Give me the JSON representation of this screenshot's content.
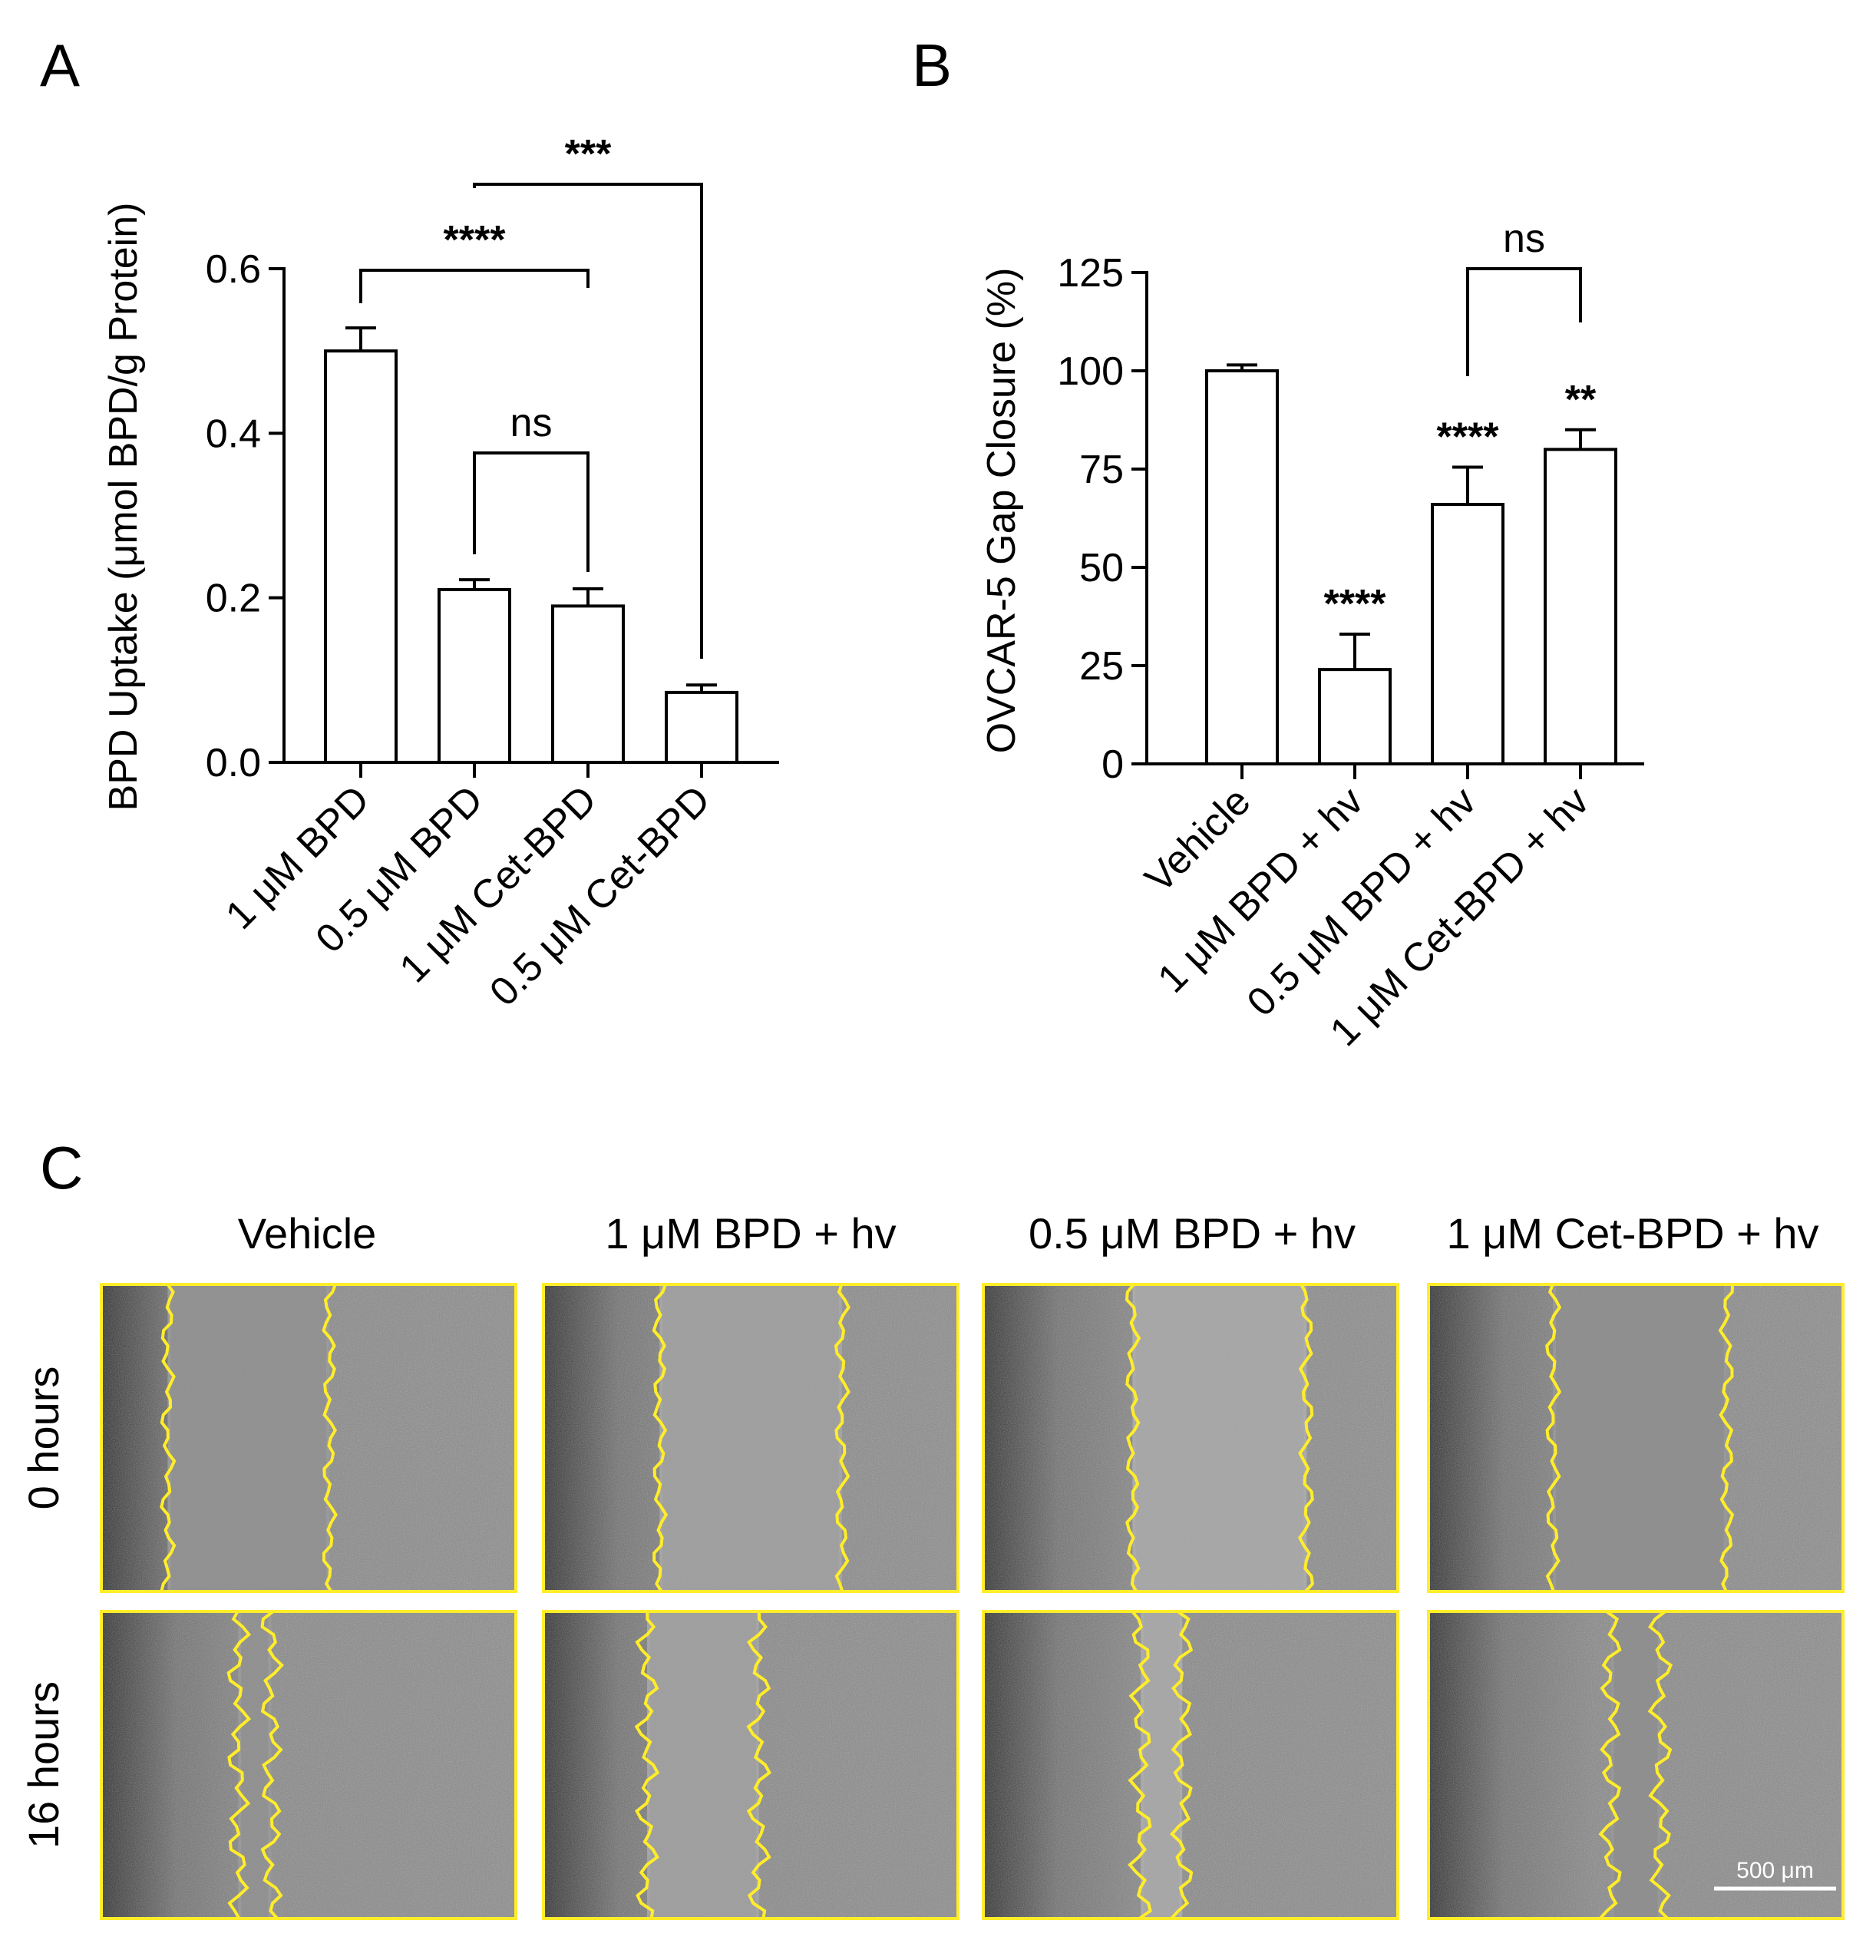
{
  "colors": {
    "bar_fill": "#ffffff",
    "bar_stroke": "#000000",
    "outline": "#ffed2a",
    "scale_bar": "#ffffff"
  },
  "chart_data": [
    {
      "panel": "A",
      "type": "bar",
      "ylabel": "BPD Uptake (μmol BPD/g Protein)",
      "categories": [
        "1 μM BPD",
        "0.5 μM BPD",
        "1 μM Cet-BPD",
        "0.5 μM Cet-BPD"
      ],
      "values": [
        0.5,
        0.21,
        0.19,
        0.085
      ],
      "errors": [
        0.028,
        0.012,
        0.021,
        0.009
      ],
      "ylim": [
        0,
        0.6
      ],
      "yticks": [
        "0.0",
        "0.2",
        "0.4",
        "0.6"
      ],
      "ytick_values": [
        0,
        0.2,
        0.4,
        0.6
      ],
      "brackets": [
        {
          "from": 1,
          "to": 3,
          "label": "***"
        },
        {
          "from": 0,
          "to": 2,
          "label": "****"
        },
        {
          "from": 1,
          "to": 2,
          "label": "ns"
        }
      ]
    },
    {
      "panel": "B",
      "type": "bar",
      "ylabel": "OVCAR-5 Gap Closure (%)",
      "categories": [
        "Vehicle",
        "1 μM BPD + hv",
        "0.5 μM BPD + hv",
        "1 μM Cet-BPD + hv"
      ],
      "values": [
        100,
        24,
        66,
        80
      ],
      "errors": [
        1.5,
        9,
        9.5,
        5
      ],
      "ylim": [
        0,
        125
      ],
      "yticks": [
        "0",
        "25",
        "50",
        "75",
        "100",
        "125"
      ],
      "ytick_values": [
        0,
        25,
        50,
        75,
        100,
        125
      ],
      "bar_labels": [
        "",
        "****",
        "****",
        "**"
      ],
      "brackets": [
        {
          "from": 2,
          "to": 3,
          "label": "ns"
        }
      ]
    }
  ],
  "panel_c": {
    "letter": "C",
    "columns": [
      "Vehicle",
      "1 μM BPD + hv",
      "0.5 μM BPD + hv",
      "1 μM Cet-BPD + hv"
    ],
    "rows": [
      "0 hours",
      "16 hours"
    ],
    "scale_bar_label": "500 μm"
  }
}
